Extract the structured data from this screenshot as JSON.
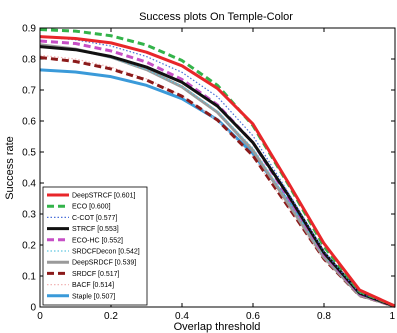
{
  "chart_data": {
    "type": "line",
    "title": "Success plots On Temple-Color",
    "xlabel": "Overlap threshold",
    "ylabel": "Success rate",
    "xlim": [
      0,
      1
    ],
    "ylim": [
      0,
      0.9
    ],
    "xticks": [
      "0",
      "0.2",
      "0.4",
      "0.6",
      "0.8",
      "1"
    ],
    "yticks": [
      "0",
      "0.1",
      "0.2",
      "0.3",
      "0.4",
      "0.5",
      "0.6",
      "0.7",
      "0.8",
      "0.9"
    ],
    "grid": false,
    "legend_position": "bottom-left",
    "x": [
      0,
      0.1,
      0.2,
      0.3,
      0.4,
      0.5,
      0.6,
      0.7,
      0.8,
      0.9,
      1.0
    ],
    "series": [
      {
        "name": "DeepSTRCF [0.601]",
        "color": "#e8262a",
        "dash": "solid",
        "width": 3,
        "values": [
          0.872,
          0.866,
          0.852,
          0.822,
          0.778,
          0.705,
          0.59,
          0.4,
          0.205,
          0.055,
          0.003
        ]
      },
      {
        "name": "ECO [0.600]",
        "color": "#33b34a",
        "dash": "dashed",
        "width": 3,
        "values": [
          0.895,
          0.89,
          0.875,
          0.845,
          0.795,
          0.715,
          0.585,
          0.395,
          0.195,
          0.05,
          0.003
        ]
      },
      {
        "name": "C-COT [0.577]",
        "color": "#4a6fd8",
        "dash": "dotted",
        "width": 1.2,
        "values": [
          0.872,
          0.862,
          0.842,
          0.808,
          0.757,
          0.678,
          0.552,
          0.368,
          0.18,
          0.045,
          0.002
        ]
      },
      {
        "name": "STRCF [0.553]",
        "color": "#111111",
        "dash": "solid",
        "width": 3,
        "values": [
          0.84,
          0.83,
          0.808,
          0.774,
          0.725,
          0.648,
          0.53,
          0.36,
          0.175,
          0.045,
          0.002
        ]
      },
      {
        "name": "ECO-HC [0.552]",
        "color": "#c64fc6",
        "dash": "dashed",
        "width": 3,
        "values": [
          0.858,
          0.85,
          0.826,
          0.79,
          0.734,
          0.652,
          0.53,
          0.352,
          0.17,
          0.042,
          0.002
        ]
      },
      {
        "name": "SRDCFDecon [0.542]",
        "color": "#5fc6e0",
        "dash": "dotted",
        "width": 1.2,
        "values": [
          0.842,
          0.83,
          0.804,
          0.766,
          0.712,
          0.632,
          0.512,
          0.34,
          0.165,
          0.04,
          0.002
        ]
      },
      {
        "name": "DeepSRDCF [0.539]",
        "color": "#9a9a9a",
        "dash": "solid",
        "width": 3,
        "values": [
          0.846,
          0.832,
          0.806,
          0.766,
          0.71,
          0.628,
          0.505,
          0.332,
          0.16,
          0.038,
          0.002
        ]
      },
      {
        "name": "SRDCF [0.517]",
        "color": "#8b1a1a",
        "dash": "dashed",
        "width": 3,
        "values": [
          0.805,
          0.792,
          0.768,
          0.732,
          0.68,
          0.603,
          0.488,
          0.322,
          0.155,
          0.037,
          0.002
        ]
      },
      {
        "name": "BACF [0.514]",
        "color": "#f2b6b6",
        "dash": "dotted",
        "width": 1.2,
        "values": [
          0.812,
          0.8,
          0.774,
          0.736,
          0.682,
          0.602,
          0.484,
          0.318,
          0.152,
          0.036,
          0.002
        ]
      },
      {
        "name": "Staple [0.507]",
        "color": "#3a9ad9",
        "dash": "solid",
        "width": 3,
        "values": [
          0.765,
          0.758,
          0.743,
          0.715,
          0.672,
          0.604,
          0.495,
          0.34,
          0.17,
          0.04,
          0.002
        ]
      }
    ]
  }
}
